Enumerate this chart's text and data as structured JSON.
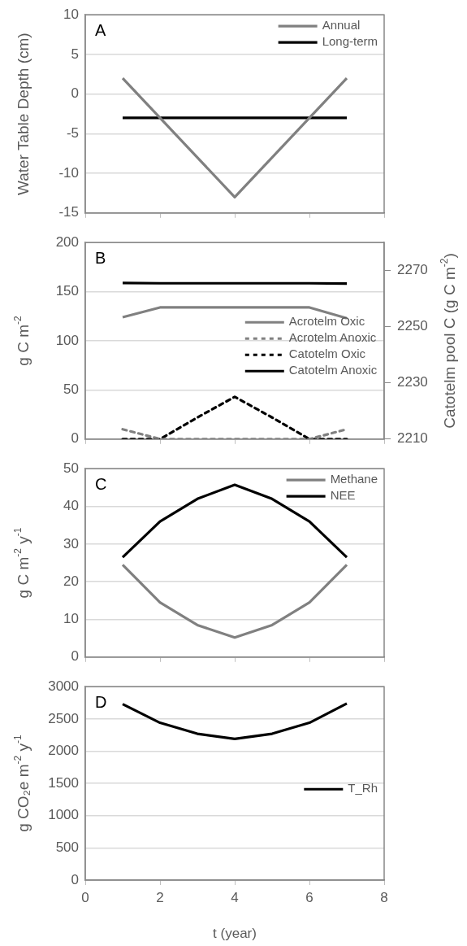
{
  "chart_data": [
    {
      "type": "line",
      "x": [
        1,
        2,
        3,
        4,
        5,
        6,
        7
      ],
      "ylabel": "Water Table Depth (cm)",
      "annotations": [
        "A"
      ],
      "xlim": [
        0,
        8
      ],
      "xticks": [
        0,
        2,
        4,
        6,
        8
      ],
      "ylim": [
        -15,
        10
      ],
      "yticks": [
        -15,
        -10,
        -5,
        0,
        5,
        10
      ],
      "grid": "y",
      "legend": "top right",
      "marker": "none",
      "tick_labels": "y",
      "series": [
        {
          "name": "Annual",
          "color": "#808080",
          "values": [
            2,
            -3,
            -8,
            -13,
            -8,
            -3,
            2
          ]
        },
        {
          "name": "Long-term",
          "color": "#000000",
          "values": [
            -3,
            -3,
            -3,
            -3,
            -3,
            -3,
            -3
          ]
        }
      ]
    },
    {
      "type": "line",
      "x": [
        1,
        2,
        3,
        4,
        5,
        6,
        7
      ],
      "ylabel": "g C m$^{-2}$",
      "y2label": "Catotelm pool C (g C m$^{-2}$)",
      "annotations": [
        "B"
      ],
      "xlim": [
        0,
        8
      ],
      "xticks": [
        0,
        2,
        4,
        6,
        8
      ],
      "ylim": [
        0,
        200
      ],
      "yticks": [
        0,
        50,
        100,
        150,
        200
      ],
      "y2lim": [
        2210,
        2280
      ],
      "y2ticks": [
        2210,
        2230,
        2250,
        2270
      ],
      "grid": "y",
      "legend": "right",
      "marker": "none",
      "tick_labels": "y",
      "series": [
        {
          "name": "Acrotelm Oxic",
          "color": "#808080",
          "values": [
            124,
            134,
            134,
            134,
            134,
            134,
            123
          ]
        },
        {
          "name": "Acrotelm Anoxic",
          "color": "#808080",
          "line_style": "dashed",
          "values": [
            10,
            0,
            0,
            0,
            0,
            0,
            10
          ]
        },
        {
          "name": "Catotelm Oxic",
          "color": "#000000",
          "line_style": "dashed",
          "values": [
            0,
            0,
            22,
            43,
            22,
            0,
            0
          ]
        },
        {
          "name": "Catotelm Anoxic",
          "color": "#000000",
          "axis": "y2",
          "values": [
            2265.6,
            2265.5,
            2265.5,
            2265.5,
            2265.5,
            2265.5,
            2265.4
          ]
        }
      ]
    },
    {
      "type": "line",
      "x": [
        1,
        2,
        3,
        4,
        5,
        6,
        7
      ],
      "ylabel": "g C m$^{-2}$ y$^{-1}$",
      "annotations": [
        "C"
      ],
      "xlim": [
        0,
        8
      ],
      "xticks": [
        0,
        2,
        4,
        6,
        8
      ],
      "ylim": [
        0,
        50
      ],
      "yticks": [
        0,
        10,
        20,
        30,
        40,
        50
      ],
      "grid": "y",
      "legend": "top right",
      "marker": "none",
      "tick_labels": "y",
      "series": [
        {
          "name": "Methane",
          "color": "#808080",
          "values": [
            24.5,
            14.5,
            8.5,
            5.2,
            8.5,
            14.5,
            24.5
          ]
        },
        {
          "name": "NEE",
          "color": "#000000",
          "values": [
            26.5,
            36,
            42,
            45.7,
            42,
            36,
            26.5
          ]
        }
      ]
    },
    {
      "type": "line",
      "x": [
        1,
        2,
        3,
        4,
        5,
        6,
        7
      ],
      "xlabel": "t (year)",
      "ylabel": "g CO₂e m$^{-2}$ y$^{-1}$",
      "annotations": [
        "D"
      ],
      "xlim": [
        0,
        8
      ],
      "xticks": [
        0,
        2,
        4,
        6,
        8
      ],
      "ylim": [
        0,
        3000
      ],
      "yticks": [
        0,
        500,
        1000,
        1500,
        2000,
        2500,
        3000
      ],
      "grid": "y",
      "legend": "right",
      "marker": "none",
      "series": [
        {
          "name": "T_Rh",
          "color": "#000000",
          "values": [
            2730,
            2440,
            2270,
            2190,
            2270,
            2440,
            2740
          ]
        }
      ]
    }
  ]
}
